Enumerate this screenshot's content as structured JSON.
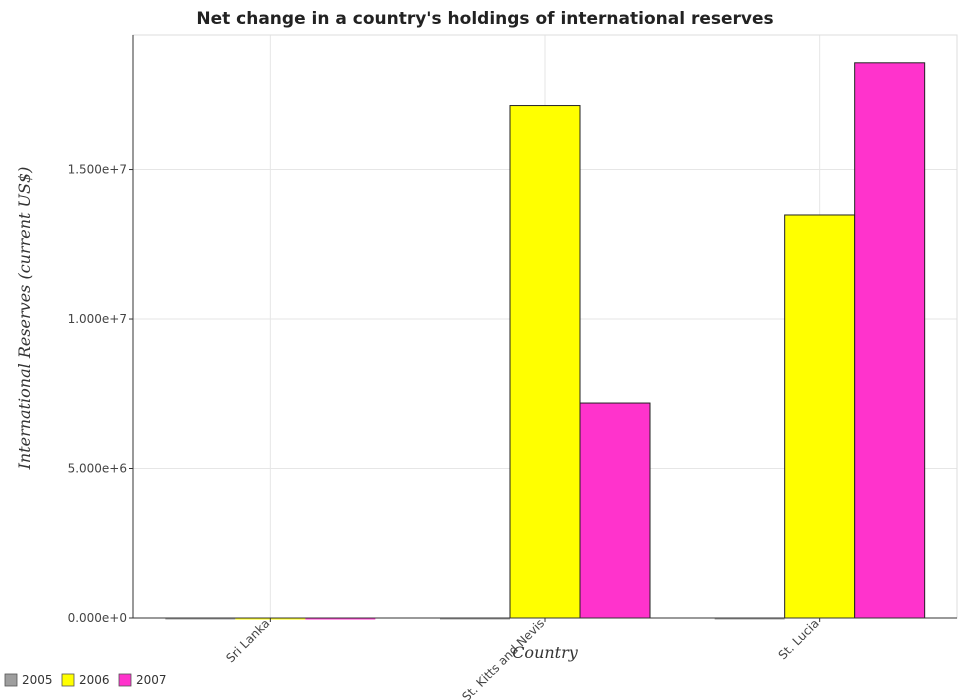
{
  "chart_data": {
    "type": "bar",
    "title": "Net change in a country's holdings of international reserves",
    "xlabel": "Country",
    "ylabel": "International Reserves (current US$)",
    "categories": [
      "Sri Lanka",
      "St. Kitts and Nevis",
      "St. Lucia"
    ],
    "series": [
      {
        "name": "2005",
        "color": "#9e9e9e",
        "values": [
          0,
          0,
          0
        ]
      },
      {
        "name": "2006",
        "color": "#ffff00",
        "values": [
          0,
          17140000,
          13480000
        ]
      },
      {
        "name": "2007",
        "color": "#ff33cc",
        "values": [
          0,
          7190000,
          18570000
        ]
      }
    ],
    "ylim": [
      0,
      19500000
    ],
    "yticks": [
      0,
      5000000,
      10000000,
      15000000
    ],
    "ytick_labels": [
      "0.000e+0",
      "5.000e+6",
      "1.000e+7",
      "1.500e+7"
    ],
    "grid": true,
    "legend_position": "bottom-left"
  }
}
